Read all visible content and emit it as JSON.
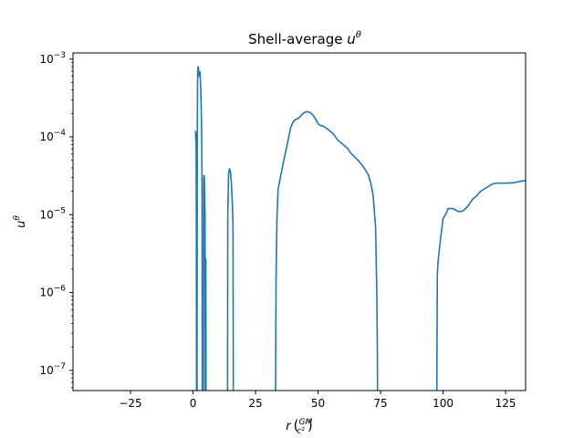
{
  "chart_data": {
    "type": "line",
    "title": "Shell-average u^θ",
    "xlabel": "r (GM/c²)",
    "ylabel": "u^θ",
    "xlim": [
      -48,
      133
    ],
    "ylim": [
      5.5e-08,
      0.0012
    ],
    "yscale": "log",
    "grid": false,
    "legend": "none",
    "x_ticks": [
      -25,
      0,
      25,
      50,
      75,
      100,
      125
    ],
    "x_tick_labels": [
      "−25",
      "0",
      "25",
      "50",
      "75",
      "100",
      "125"
    ],
    "y_ticks": [
      1e-07,
      1e-06,
      1e-05,
      0.0001,
      0.001
    ],
    "y_tick_labels": [
      {
        "base": "10",
        "exp": "−7"
      },
      {
        "base": "10",
        "exp": "−6"
      },
      {
        "base": "10",
        "exp": "−5"
      },
      {
        "base": "10",
        "exp": "−4"
      },
      {
        "base": "10",
        "exp": "−3"
      }
    ],
    "series": [
      {
        "color": "#1f77b4",
        "segments": [
          [
            [
              1.0,
              0.00012
            ],
            [
              1.1,
              9e-05
            ],
            [
              1.2,
              0.00011
            ],
            [
              1.3,
              3e-05
            ],
            [
              1.4,
              5.5e-08
            ]
          ],
          [
            [
              1.6,
              5.5e-08
            ],
            [
              1.7,
              0.0001
            ],
            [
              1.8,
              0.0005
            ],
            [
              1.9,
              0.0007
            ],
            [
              2.0,
              0.0008
            ],
            [
              2.2,
              0.00075
            ],
            [
              2.5,
              0.0006
            ],
            [
              2.8,
              0.00068
            ],
            [
              3.1,
              0.0004
            ],
            [
              3.4,
              0.00015
            ],
            [
              3.6,
              3e-05
            ],
            [
              3.7,
              5.5e-08
            ]
          ],
          [
            [
              4.1,
              5.5e-08
            ],
            [
              4.3,
              3e-05
            ],
            [
              4.5,
              3.2e-05
            ],
            [
              4.8,
              1e-05
            ],
            [
              4.9,
              5.5e-08
            ]
          ],
          [
            [
              5.0,
              5.5e-08
            ],
            [
              5.1,
              2.7e-06
            ],
            [
              5.2,
              5.5e-08
            ]
          ],
          [
            [
              13.8,
              5.5e-08
            ],
            [
              13.9,
              1e-05
            ],
            [
              14.2,
              3.3e-05
            ],
            [
              14.6,
              3.9e-05
            ],
            [
              15.0,
              3.5e-05
            ],
            [
              15.4,
              2.4e-05
            ],
            [
              15.8,
              1.2e-05
            ],
            [
              16.0,
              7e-06
            ],
            [
              16.1,
              5.5e-08
            ]
          ],
          [
            [
              33.0,
              5.5e-08
            ],
            [
              33.2,
              1.4e-06
            ],
            [
              33.6,
              1e-05
            ],
            [
              34,
              2.1e-05
            ],
            [
              36,
              4.5e-05
            ],
            [
              38,
              9e-05
            ],
            [
              39,
              0.00013
            ],
            [
              40,
              0.000155
            ],
            [
              41,
              0.000168
            ],
            [
              42,
              0.000172
            ],
            [
              43,
              0.000185
            ],
            [
              44,
              0.0002
            ],
            [
              45,
              0.00021
            ],
            [
              46,
              0.00021
            ],
            [
              47,
              0.000205
            ],
            [
              48,
              0.00019
            ],
            [
              49,
              0.00017
            ],
            [
              50,
              0.000148
            ],
            [
              51,
              0.00014
            ],
            [
              52,
              0.000138
            ],
            [
              54,
              0.000125
            ],
            [
              56,
              0.00011
            ],
            [
              58,
              9e-05
            ],
            [
              60,
              8e-05
            ],
            [
              62,
              7e-05
            ],
            [
              63,
              6.2e-05
            ],
            [
              64,
              5.8e-05
            ],
            [
              66,
              5e-05
            ],
            [
              68,
              4.2e-05
            ],
            [
              70,
              3.3e-05
            ],
            [
              71,
              2.6e-05
            ],
            [
              72,
              1.8e-05
            ],
            [
              73,
              7e-06
            ],
            [
              73.5,
              1e-06
            ],
            [
              73.7,
              2e-07
            ],
            [
              73.8,
              5.5e-08
            ]
          ],
          [
            [
              97.5,
              5.5e-08
            ],
            [
              97.7,
              1.7e-06
            ],
            [
              98,
              2.5e-06
            ],
            [
              99,
              5e-06
            ],
            [
              100,
              9e-06
            ],
            [
              101,
              1e-05
            ],
            [
              102,
              1.2e-05
            ],
            [
              103,
              1.2e-05
            ],
            [
              104,
              1.2e-05
            ],
            [
              105,
              1.15e-05
            ],
            [
              106,
              1.1e-05
            ],
            [
              107,
              1.1e-05
            ],
            [
              108,
              1.12e-05
            ],
            [
              109,
              1.2e-05
            ],
            [
              110,
              1.3e-05
            ],
            [
              111,
              1.45e-05
            ],
            [
              112,
              1.6e-05
            ],
            [
              113,
              1.7e-05
            ],
            [
              115,
              2e-05
            ],
            [
              117,
              2.2e-05
            ],
            [
              119,
              2.4e-05
            ],
            [
              120,
              2.5e-05
            ],
            [
              122,
              2.55e-05
            ],
            [
              125,
              2.55e-05
            ],
            [
              128,
              2.57e-05
            ],
            [
              130,
              2.65e-05
            ],
            [
              133,
              2.75e-05
            ]
          ]
        ]
      }
    ]
  }
}
